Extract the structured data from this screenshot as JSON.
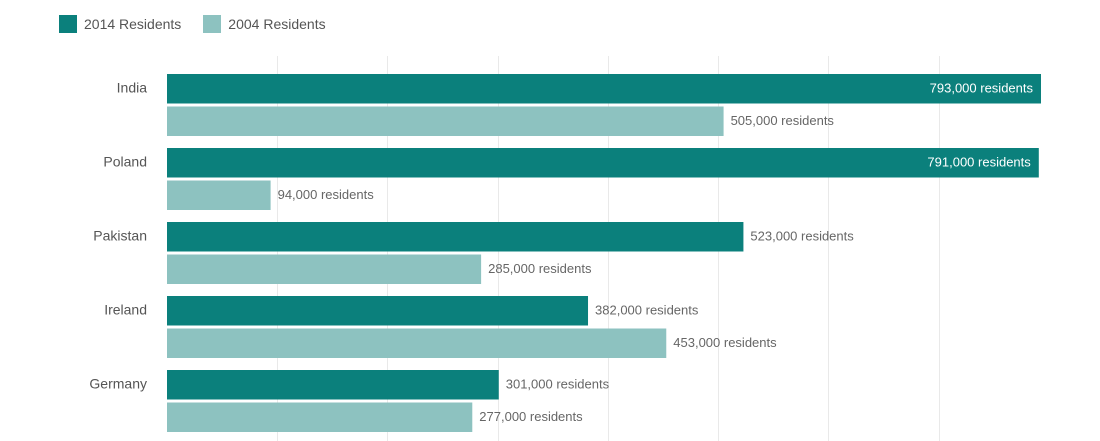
{
  "legend": [
    {
      "label": "2014 Residents",
      "color": "#0b807c"
    },
    {
      "label": "2004 Residents",
      "color": "#8dc2c0"
    }
  ],
  "chart_data": {
    "type": "bar",
    "orientation": "horizontal",
    "categories": [
      "India",
      "Poland",
      "Pakistan",
      "Ireland",
      "Germany"
    ],
    "series": [
      {
        "name": "2014 Residents",
        "color": "#0b807c",
        "values": [
          793000,
          791000,
          523000,
          382000,
          301000
        ],
        "labels": [
          "793,000 residents",
          "791,000 residents",
          "523,000 residents",
          "382,000 residents",
          "301,000 residents"
        ]
      },
      {
        "name": "2004 Residents",
        "color": "#8dc2c0",
        "values": [
          505000,
          94000,
          285000,
          453000,
          277000
        ],
        "labels": [
          "505,000 residents",
          "94,000 residents",
          "285,000 residents",
          "453,000 residents",
          "277,000 residents"
        ]
      }
    ],
    "xlim": [
      0,
      793000
    ],
    "grid": true,
    "legend_position": "top-left"
  }
}
